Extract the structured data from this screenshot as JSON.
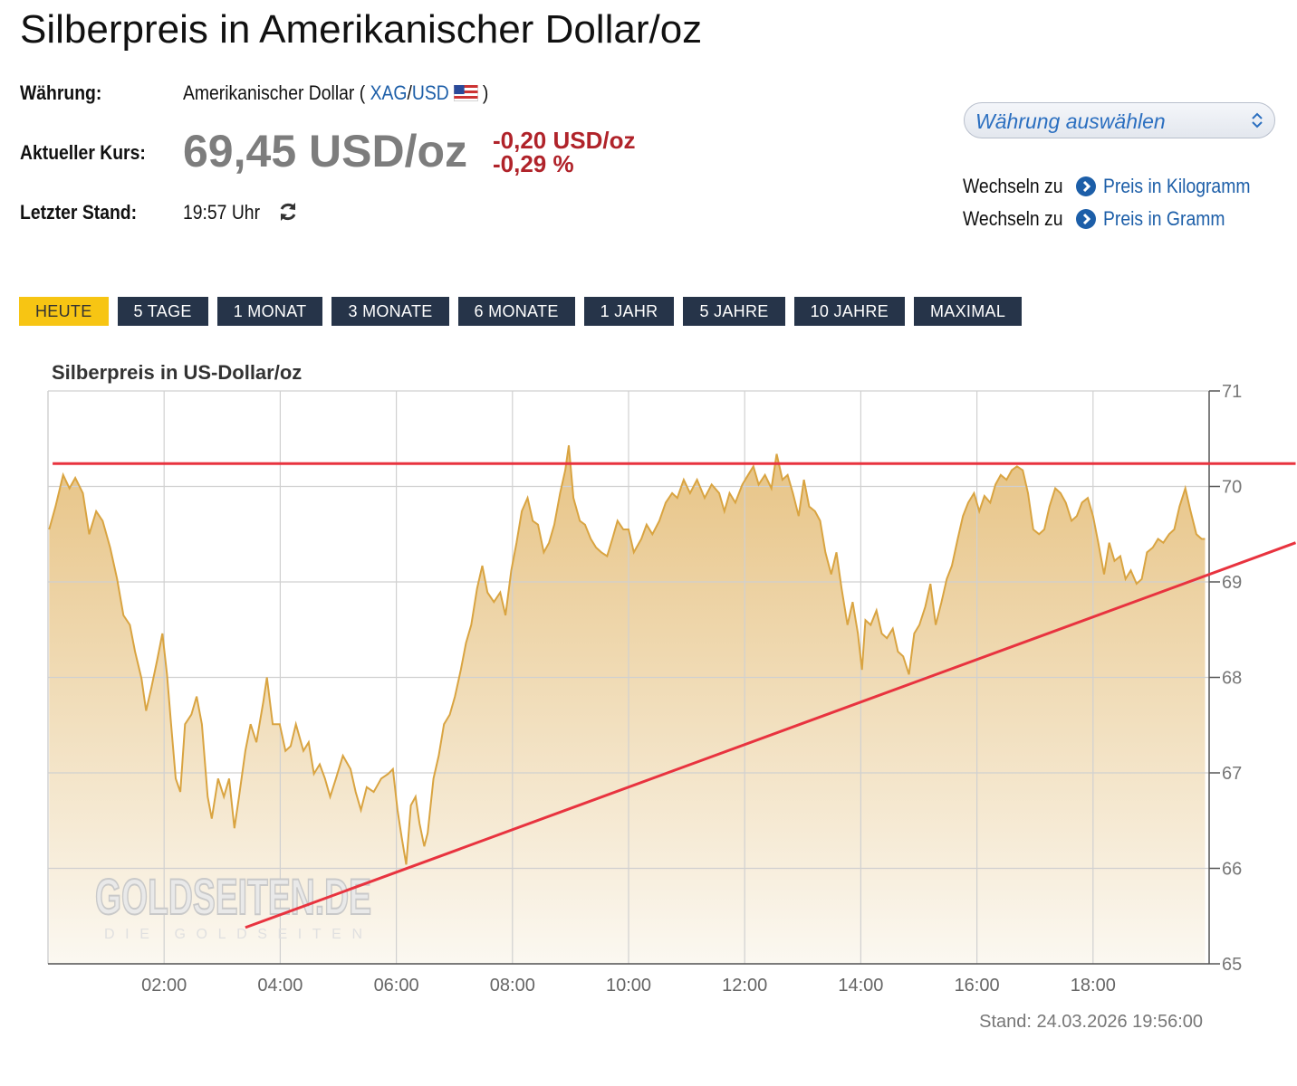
{
  "header": {
    "title": "Silberpreis in Amerikanischer Dollar/oz",
    "currency_label": "Währung:",
    "currency_prefix": "Amerikanischer Dollar (",
    "currency_base": "XAG",
    "currency_sep": "/",
    "currency_quote": "USD",
    "currency_suffix": ")",
    "price_label": "Aktueller Kurs:",
    "price": "69,45 USD/oz",
    "change_abs": "-0,20 USD/oz",
    "change_pct": "-0,29 %",
    "time_label": "Letzter Stand:",
    "time": "19:57 Uhr"
  },
  "currency_select": "Währung auswählen",
  "links": [
    {
      "prefix": "Wechseln zu",
      "text": "Preis in Kilogramm"
    },
    {
      "prefix": "Wechseln zu",
      "text": "Preis in Gramm"
    }
  ],
  "tabs": [
    "HEUTE",
    "5 TAGE",
    "1 MONAT",
    "3 MONATE",
    "6 MONATE",
    "1 JAHR",
    "5 JAHRE",
    "10 JAHRE",
    "MAXIMAL"
  ],
  "active_tab": 0,
  "chart_data": {
    "type": "area",
    "title": "Silberpreis in US-Dollar/oz",
    "footnote": "Stand: 24.03.2026 19:56:00",
    "watermark": "GOLDSEITEN.DE",
    "watermark_sub": "DIE GOLDSEITEN",
    "color": "#d9a441",
    "grid": true,
    "y_axis_side": "right",
    "xlim": [
      0,
      20
    ],
    "ylim": [
      65,
      71
    ],
    "xticks": [
      {
        "value": 2,
        "label": "02:00"
      },
      {
        "value": 4,
        "label": "04:00"
      },
      {
        "value": 6,
        "label": "06:00"
      },
      {
        "value": 8,
        "label": "08:00"
      },
      {
        "value": 10,
        "label": "10:00"
      },
      {
        "value": 12,
        "label": "12:00"
      },
      {
        "value": 14,
        "label": "14:00"
      },
      {
        "value": 16,
        "label": "16:00"
      },
      {
        "value": 18,
        "label": "18:00"
      }
    ],
    "yticks": [
      65,
      66,
      67,
      68,
      69,
      70,
      71
    ],
    "x": [
      0.02,
      0.13,
      0.26,
      0.37,
      0.47,
      0.6,
      0.71,
      0.83,
      0.94,
      1.07,
      1.19,
      1.3,
      1.41,
      1.5,
      1.61,
      1.69,
      1.78,
      1.88,
      1.97,
      2.05,
      2.12,
      2.2,
      2.28,
      2.36,
      2.47,
      2.56,
      2.65,
      2.75,
      2.82,
      2.93,
      3.03,
      3.12,
      3.21,
      3.29,
      3.4,
      3.49,
      3.59,
      3.71,
      3.77,
      3.87,
      3.99,
      4.09,
      4.18,
      4.27,
      4.4,
      4.49,
      4.58,
      4.68,
      4.77,
      4.86,
      4.96,
      5.08,
      5.21,
      5.3,
      5.39,
      5.49,
      5.61,
      5.74,
      5.86,
      5.94,
      6.02,
      6.09,
      6.17,
      6.25,
      6.33,
      6.4,
      6.48,
      6.54,
      6.64,
      6.73,
      6.82,
      6.92,
      7.01,
      7.11,
      7.2,
      7.29,
      7.39,
      7.48,
      7.57,
      7.68,
      7.79,
      7.88,
      7.98,
      8.07,
      8.16,
      8.26,
      8.35,
      8.44,
      8.54,
      8.63,
      8.72,
      8.82,
      8.91,
      8.97,
      9.05,
      9.16,
      9.25,
      9.35,
      9.44,
      9.53,
      9.63,
      9.72,
      9.81,
      9.91,
      10.0,
      10.09,
      10.22,
      10.31,
      10.41,
      10.53,
      10.64,
      10.75,
      10.84,
      10.95,
      11.06,
      11.18,
      11.31,
      11.43,
      11.56,
      11.65,
      11.74,
      11.84,
      11.96,
      12.06,
      12.15,
      12.24,
      12.35,
      12.46,
      12.55,
      12.65,
      12.74,
      12.83,
      12.93,
      13.02,
      13.11,
      13.21,
      13.3,
      13.39,
      13.49,
      13.58,
      13.67,
      13.77,
      13.86,
      13.95,
      14.02,
      14.08,
      14.17,
      14.27,
      14.36,
      14.45,
      14.55,
      14.64,
      14.73,
      14.83,
      14.92,
      15.01,
      15.11,
      15.2,
      15.29,
      15.39,
      15.48,
      15.57,
      15.67,
      15.76,
      15.85,
      15.95,
      16.04,
      16.13,
      16.23,
      16.32,
      16.41,
      16.51,
      16.6,
      16.69,
      16.79,
      16.88,
      16.97,
      17.07,
      17.16,
      17.25,
      17.35,
      17.44,
      17.53,
      17.63,
      17.72,
      17.81,
      17.91,
      18.0,
      18.09,
      18.19,
      18.28,
      18.37,
      18.47,
      18.56,
      18.65,
      18.75,
      18.84,
      18.93,
      19.03,
      19.12,
      19.21,
      19.31,
      19.4,
      19.49,
      19.59,
      19.68,
      19.78,
      19.87,
      19.93
    ],
    "values": [
      69.55,
      69.79,
      70.12,
      69.98,
      70.09,
      69.93,
      69.5,
      69.74,
      69.64,
      69.36,
      69.03,
      68.65,
      68.55,
      68.27,
      67.99,
      67.65,
      67.89,
      68.18,
      68.46,
      68.03,
      67.51,
      66.94,
      66.8,
      67.51,
      67.61,
      67.8,
      67.51,
      66.75,
      66.52,
      66.94,
      66.75,
      66.94,
      66.42,
      66.75,
      67.23,
      67.51,
      67.32,
      67.75,
      68.0,
      67.51,
      67.51,
      67.23,
      67.28,
      67.51,
      67.23,
      67.32,
      66.99,
      67.09,
      66.94,
      66.75,
      66.94,
      67.18,
      67.04,
      66.8,
      66.61,
      66.85,
      66.8,
      66.94,
      66.99,
      67.04,
      66.61,
      66.33,
      66.04,
      66.66,
      66.75,
      66.47,
      66.23,
      66.37,
      66.94,
      67.18,
      67.51,
      67.61,
      67.8,
      68.08,
      68.36,
      68.55,
      68.93,
      69.17,
      68.89,
      68.79,
      68.89,
      68.65,
      69.12,
      69.41,
      69.74,
      69.88,
      69.64,
      69.6,
      69.31,
      69.41,
      69.6,
      69.93,
      70.17,
      70.43,
      69.88,
      69.64,
      69.6,
      69.45,
      69.36,
      69.31,
      69.27,
      69.45,
      69.64,
      69.55,
      69.55,
      69.31,
      69.45,
      69.6,
      69.5,
      69.64,
      69.83,
      69.93,
      69.88,
      70.07,
      69.93,
      70.07,
      69.88,
      70.02,
      69.93,
      69.74,
      69.93,
      69.83,
      70.02,
      70.12,
      70.21,
      70.02,
      70.12,
      69.98,
      70.34,
      70.07,
      70.12,
      69.93,
      69.69,
      70.07,
      69.79,
      69.74,
      69.64,
      69.31,
      69.08,
      69.31,
      68.93,
      68.55,
      68.79,
      68.46,
      68.08,
      68.6,
      68.55,
      68.7,
      68.46,
      68.41,
      68.51,
      68.27,
      68.22,
      68.03,
      68.46,
      68.55,
      68.74,
      68.98,
      68.55,
      68.79,
      69.03,
      69.17,
      69.45,
      69.69,
      69.83,
      69.93,
      69.74,
      69.9,
      69.83,
      70.02,
      70.12,
      70.07,
      70.17,
      70.21,
      70.17,
      69.93,
      69.55,
      69.5,
      69.55,
      69.79,
      69.98,
      69.93,
      69.83,
      69.64,
      69.69,
      69.83,
      69.88,
      69.69,
      69.41,
      69.08,
      69.41,
      69.22,
      69.27,
      69.03,
      69.12,
      68.98,
      69.03,
      69.31,
      69.36,
      69.45,
      69.41,
      69.5,
      69.55,
      69.79,
      69.98,
      69.74,
      69.5,
      69.45,
      69.45
    ],
    "annotations": [
      {
        "color": "#e8333f",
        "x": [
          0.08,
          21.49
        ],
        "y": [
          70.24,
          70.24
        ]
      },
      {
        "color": "#e8333f",
        "x": [
          3.4,
          21.49
        ],
        "y": [
          65.38,
          69.41
        ]
      }
    ]
  }
}
